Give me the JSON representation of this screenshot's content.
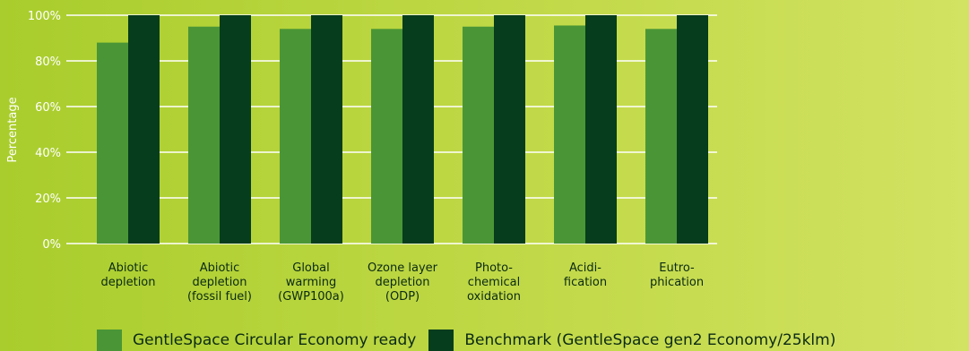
{
  "chart_data": {
    "type": "bar",
    "title": "",
    "xlabel": "",
    "ylabel": "Percentage",
    "ylim": [
      0,
      100
    ],
    "yticks": [
      "0%",
      "20%",
      "40%",
      "60%",
      "80%",
      "100%"
    ],
    "categories": [
      [
        "Abiotic",
        "depletion"
      ],
      [
        "Abiotic",
        "depletion",
        "(fossil fuel)"
      ],
      [
        "Global",
        "warming",
        "(GWP100a)"
      ],
      [
        "Ozone layer",
        "depletion",
        "(ODP)"
      ],
      [
        "Photo-",
        "chemical",
        "oxidation"
      ],
      [
        "Acidi-",
        "fication"
      ],
      [
        "Eutro-",
        "phication"
      ]
    ],
    "series": [
      {
        "name": "GentleSpace Circular Economy ready",
        "color": "#4a9636",
        "values": [
          88,
          95,
          94,
          94,
          95,
          95.5,
          94
        ]
      },
      {
        "name": "Benchmark (GentleSpace gen2 Economy/25klm)",
        "color": "#063d1c",
        "values": [
          100,
          100,
          100,
          100,
          100,
          100,
          100
        ]
      }
    ],
    "grid": true,
    "legend_position": "bottom"
  }
}
